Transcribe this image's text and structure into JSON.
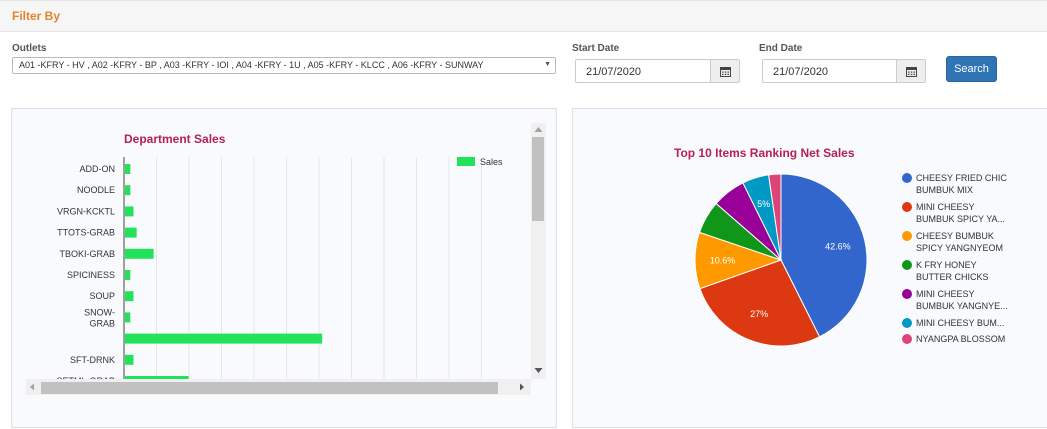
{
  "filter": {
    "title": "Filter By",
    "outlets_label": "Outlets",
    "outlets_value": "A01 -KFRY - HV , A02 -KFRY - BP , A03 -KFRY - IOI , A04 -KFRY - 1U , A05 -KFRY - KLCC , A06 -KFRY - SUNWAY",
    "start_date_label": "Start Date",
    "start_date_value": "21/07/2020",
    "end_date_label": "End Date",
    "end_date_value": "21/07/2020",
    "search_label": "Search"
  },
  "chart_data": [
    {
      "type": "bar",
      "orientation": "horizontal",
      "title": "Department Sales",
      "legend": "top-right",
      "categories": [
        "ADD-ON",
        "NOODLE",
        "VRGN-KCKTL",
        "TTOTS-GRAB",
        "TBOKI-GRAB",
        "SPICINESS",
        "SOUP",
        "SNOW-GRAB",
        "",
        "SFT-DRNK",
        "SETML-GRAB"
      ],
      "series": [
        {
          "name": "Sales",
          "values": [
            5,
            5,
            8,
            11,
            27,
            5,
            8,
            5,
            186,
            8,
            60
          ]
        }
      ],
      "color": "#22e25a",
      "grid": true
    },
    {
      "type": "pie",
      "title": "Top 10 Items Ranking Net Sales",
      "legend": "right",
      "labels": [
        "CHEESY FRIED CHIC BUMBUK MIX",
        "MINI CHEESY BUMBUK SPICY YA...",
        "CHEESY BUMBUK SPICY YANGNYEOM",
        "K FRY HONEY BUTTER CHICKS",
        "MINI CHEESY BUMBUK YANGNYE...",
        "MINI CHEESY BUM...",
        "NYANGPA BLOSSOM"
      ],
      "legend_lines": [
        [
          "CHEESY FRIED CHIC",
          "BUMBUK MIX"
        ],
        [
          "MINI CHEESY",
          "BUMBUK SPICY YA..."
        ],
        [
          "CHEESY BUMBUK",
          "SPICY YANGNYEOM"
        ],
        [
          "K FRY HONEY",
          "BUTTER CHICKS"
        ],
        [
          "MINI CHEESY",
          "BUMBUK YANGNYE..."
        ],
        [
          "MINI CHEESY BUM..."
        ],
        [
          "NYANGPA BLOSSOM"
        ]
      ],
      "values": [
        42.6,
        27,
        10.6,
        6.2,
        6.3,
        5,
        2.3
      ],
      "slice_labels": [
        "42.6%",
        "27%",
        "10.6%",
        "",
        "",
        "5%",
        ""
      ],
      "colors": [
        "#3366cc",
        "#dc3912",
        "#ff9900",
        "#109618",
        "#990099",
        "#0099c6",
        "#dd4477"
      ]
    }
  ]
}
